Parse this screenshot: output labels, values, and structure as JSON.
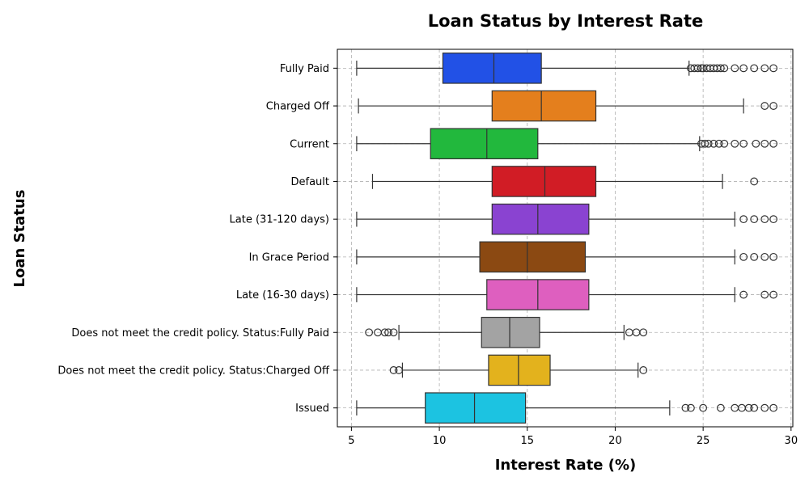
{
  "chart_data": {
    "type": "boxplot",
    "orientation": "horizontal",
    "title": "Loan Status by Interest Rate",
    "xlabel": "Interest Rate (%)",
    "ylabel": "Loan Status",
    "xlim": [
      4.2,
      30.1
    ],
    "xticks": [
      5,
      10,
      15,
      20,
      25,
      30
    ],
    "grid": true,
    "categories": [
      "Fully Paid",
      "Charged Off",
      "Current",
      "Default",
      "Late (31-120 days)",
      "In Grace Period",
      "Late (16-30 days)",
      "Does not meet the credit policy. Status:Fully Paid",
      "Does not meet the credit policy. Status:Charged Off",
      "Issued"
    ],
    "colors": [
      "#2251e6",
      "#e47f1d",
      "#22b83d",
      "#d11c25",
      "#8a43d1",
      "#8b4912",
      "#de5fbf",
      "#a3a3a3",
      "#e3b21d",
      "#1cc3e1"
    ],
    "boxes": [
      {
        "whislo": 5.3,
        "q1": 10.2,
        "med": 13.1,
        "q3": 15.8,
        "whishi": 24.2,
        "fliers": [
          24.3,
          24.5,
          24.7,
          24.9,
          25.0,
          25.2,
          25.4,
          25.6,
          25.8,
          26.0,
          26.2,
          26.8,
          27.3,
          27.9,
          28.5,
          29.0
        ]
      },
      {
        "whislo": 5.4,
        "q1": 13.0,
        "med": 15.8,
        "q3": 18.9,
        "whishi": 27.3,
        "fliers": [
          28.5,
          29.0
        ]
      },
      {
        "whislo": 5.3,
        "q1": 9.5,
        "med": 12.7,
        "q3": 15.6,
        "whishi": 24.8,
        "fliers": [
          24.9,
          25.1,
          25.3,
          25.6,
          25.9,
          26.2,
          26.8,
          27.3,
          28.0,
          28.5,
          29.0
        ]
      },
      {
        "whislo": 6.2,
        "q1": 13.0,
        "med": 16.0,
        "q3": 18.9,
        "whishi": 26.1,
        "fliers": [
          27.9
        ]
      },
      {
        "whislo": 5.3,
        "q1": 13.0,
        "med": 15.6,
        "q3": 18.5,
        "whishi": 26.8,
        "fliers": [
          27.3,
          27.9,
          28.5,
          29.0
        ]
      },
      {
        "whislo": 5.3,
        "q1": 12.3,
        "med": 15.0,
        "q3": 18.3,
        "whishi": 26.8,
        "fliers": [
          27.3,
          27.9,
          28.5,
          29.0
        ]
      },
      {
        "whislo": 5.3,
        "q1": 12.7,
        "med": 15.6,
        "q3": 18.5,
        "whishi": 26.8,
        "fliers": [
          27.3,
          28.5,
          29.0
        ]
      },
      {
        "whislo": 7.7,
        "q1": 12.4,
        "med": 14.0,
        "q3": 15.7,
        "whishi": 20.5,
        "fliers": [
          6.0,
          6.5,
          6.9,
          7.1,
          7.4,
          20.8,
          21.2,
          21.6
        ]
      },
      {
        "whislo": 7.9,
        "q1": 12.8,
        "med": 14.5,
        "q3": 16.3,
        "whishi": 21.3,
        "fliers": [
          7.4,
          7.7,
          21.6
        ]
      },
      {
        "whislo": 5.3,
        "q1": 9.2,
        "med": 12.0,
        "q3": 14.9,
        "whishi": 23.1,
        "fliers": [
          24.0,
          24.3,
          25.0,
          26.0,
          26.8,
          27.2,
          27.6,
          27.9,
          28.5,
          29.0
        ]
      }
    ]
  }
}
